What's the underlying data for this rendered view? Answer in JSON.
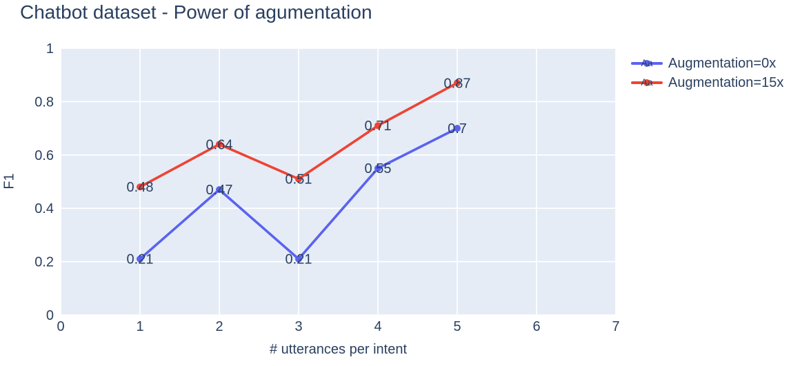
{
  "chart_data": {
    "type": "line",
    "title": "Chatbot dataset - Power of agumentation",
    "xlabel": "# utterances per intent",
    "ylabel": "F1",
    "xlim": [
      0,
      7
    ],
    "ylim": [
      0,
      1
    ],
    "x_ticks": [
      0,
      1,
      2,
      3,
      4,
      5,
      6,
      7
    ],
    "y_ticks": [
      0,
      0.2,
      0.4,
      0.6,
      0.8,
      1
    ],
    "grid": true,
    "legend_position": "right-outside-top",
    "legend_sample_text": "Aa",
    "x": [
      1,
      2,
      3,
      4,
      5
    ],
    "series": [
      {
        "name": "Augmentation=0x",
        "color": "#5A63EF",
        "values": [
          0.21,
          0.47,
          0.21,
          0.55,
          0.7
        ],
        "labels": [
          "0.21",
          "0.47",
          "0.21",
          "0.55",
          "0.7"
        ]
      },
      {
        "name": "Augmentation=15x",
        "color": "#EF4433",
        "values": [
          0.48,
          0.64,
          0.51,
          0.71,
          0.87
        ],
        "labels": [
          "0.48",
          "0.64",
          "0.51",
          "0.71",
          "0.87"
        ]
      }
    ],
    "colors": {
      "plot_bg": "#e5ecf6",
      "grid": "#ffffff",
      "text": "#2a3f5f"
    }
  }
}
